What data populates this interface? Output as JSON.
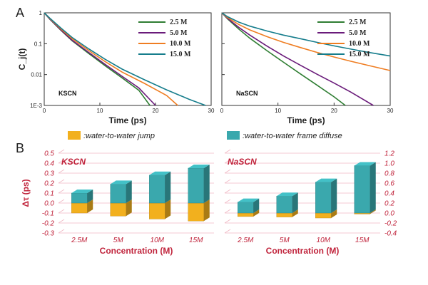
{
  "figure": {
    "panel_a_label": "A",
    "panel_b_label": "B"
  },
  "chart_data": [
    {
      "type": "line",
      "panel": "A-left",
      "inner_label": "KSCN",
      "xlabel": "Time (ps)",
      "ylabel": "C_j(t)",
      "xlim": [
        0,
        30
      ],
      "ylim_log": [
        0.001,
        1
      ],
      "x_ticks": [
        "0",
        "10",
        "20",
        "30"
      ],
      "y_ticks": [
        "1",
        "0.1",
        "0.01",
        "1E-3"
      ],
      "legend_position": "top-right",
      "series": [
        {
          "name": "2.5 M",
          "color": "#2e7d32",
          "x": [
            0,
            1,
            3,
            5,
            8,
            11,
            14,
            17,
            19
          ],
          "y": [
            1,
            0.62,
            0.27,
            0.125,
            0.048,
            0.019,
            0.0078,
            0.0031,
            0.001
          ]
        },
        {
          "name": "5.0 M",
          "color": "#6a1b7a",
          "x": [
            0,
            1,
            3,
            5,
            8,
            11,
            14,
            17,
            20
          ],
          "y": [
            1,
            0.63,
            0.28,
            0.13,
            0.052,
            0.021,
            0.0088,
            0.0037,
            0.001
          ]
        },
        {
          "name": "10.0 M",
          "color": "#ef7d22",
          "x": [
            0,
            1,
            3,
            5,
            8,
            11,
            14,
            18,
            22,
            24
          ],
          "y": [
            1,
            0.65,
            0.3,
            0.145,
            0.06,
            0.026,
            0.012,
            0.0052,
            0.0021,
            0.001
          ]
        },
        {
          "name": "15.0 M",
          "color": "#167d8c",
          "x": [
            0,
            1,
            3,
            5,
            8,
            11,
            14,
            18,
            22,
            26,
            29
          ],
          "y": [
            1,
            0.67,
            0.32,
            0.16,
            0.068,
            0.031,
            0.015,
            0.0068,
            0.0032,
            0.0016,
            0.001
          ]
        }
      ]
    },
    {
      "type": "line",
      "panel": "A-right",
      "inner_label": "NaSCN",
      "xlabel": "Time (ps)",
      "xlim": [
        0,
        30
      ],
      "ylim_log": [
        0.001,
        1
      ],
      "x_ticks": [
        "0",
        "10",
        "20",
        "30"
      ],
      "legend_position": "top-right",
      "series": [
        {
          "name": "2.5 M",
          "color": "#2e7d32",
          "x": [
            0,
            1,
            3,
            5,
            8,
            11,
            14,
            17,
            20,
            22
          ],
          "y": [
            1,
            0.64,
            0.3,
            0.15,
            0.06,
            0.025,
            0.0105,
            0.0045,
            0.0019,
            0.001
          ]
        },
        {
          "name": "5.0 M",
          "color": "#6a1b7a",
          "x": [
            0,
            1,
            3,
            5,
            8,
            11,
            14,
            17,
            20,
            23,
            27
          ],
          "y": [
            1,
            0.66,
            0.34,
            0.19,
            0.085,
            0.04,
            0.02,
            0.0102,
            0.0053,
            0.0027,
            0.001
          ]
        },
        {
          "name": "10.0 M",
          "color": "#ef7d22",
          "x": [
            0,
            1,
            3,
            5,
            8,
            11,
            14,
            17,
            20,
            23,
            26,
            30
          ],
          "y": [
            1,
            0.7,
            0.42,
            0.28,
            0.17,
            0.11,
            0.075,
            0.052,
            0.037,
            0.027,
            0.02,
            0.0135
          ]
        },
        {
          "name": "15.0 M",
          "color": "#167d8c",
          "x": [
            0,
            1,
            3,
            5,
            8,
            11,
            14,
            17,
            20,
            23,
            26,
            30
          ],
          "y": [
            1,
            0.75,
            0.5,
            0.37,
            0.26,
            0.19,
            0.145,
            0.11,
            0.085,
            0.067,
            0.053,
            0.04
          ]
        }
      ]
    },
    {
      "type": "bar",
      "panel": "B-left",
      "inner_label": "KSCN",
      "xlabel": "Concentration (M)",
      "ylabel": "Δτ (ps)",
      "categories": [
        "2.5M",
        "5M",
        "10M",
        "15M"
      ],
      "ylim": [
        -0.3,
        0.5
      ],
      "y_ticks": [
        "0.5",
        "0.4",
        "0.3",
        "0.2",
        "0.1",
        "0.0",
        "-0.1",
        "-0.2",
        "-0.3"
      ],
      "legend_position": "top",
      "series": [
        {
          "name": ":water-to-water jump",
          "color": "#f2b01e",
          "values": [
            -0.1,
            -0.13,
            -0.16,
            -0.18
          ]
        },
        {
          "name": ":water-to-water frame diffuse",
          "color": "#3aa8ad",
          "values": [
            0.1,
            0.19,
            0.28,
            0.35
          ]
        }
      ]
    },
    {
      "type": "bar",
      "panel": "B-right",
      "inner_label": "NaSCN",
      "xlabel": "Concentration (M)",
      "categories": [
        "2.5M",
        "5M",
        "10M",
        "15M"
      ],
      "ylim": [
        -0.4,
        1.2
      ],
      "y_ticks": [
        "1.2",
        "1.0",
        "0.8",
        "0.6",
        "0.4",
        "0.2",
        "0.0",
        "-0.2",
        "-0.4"
      ],
      "series": [
        {
          "name": ":water-to-water jump",
          "color": "#f2b01e",
          "values": [
            -0.07,
            -0.08,
            -0.1,
            -0.02
          ]
        },
        {
          "name": ":water-to-water frame diffuse",
          "color": "#3aa8ad",
          "values": [
            0.22,
            0.34,
            0.62,
            0.95
          ]
        }
      ]
    }
  ]
}
